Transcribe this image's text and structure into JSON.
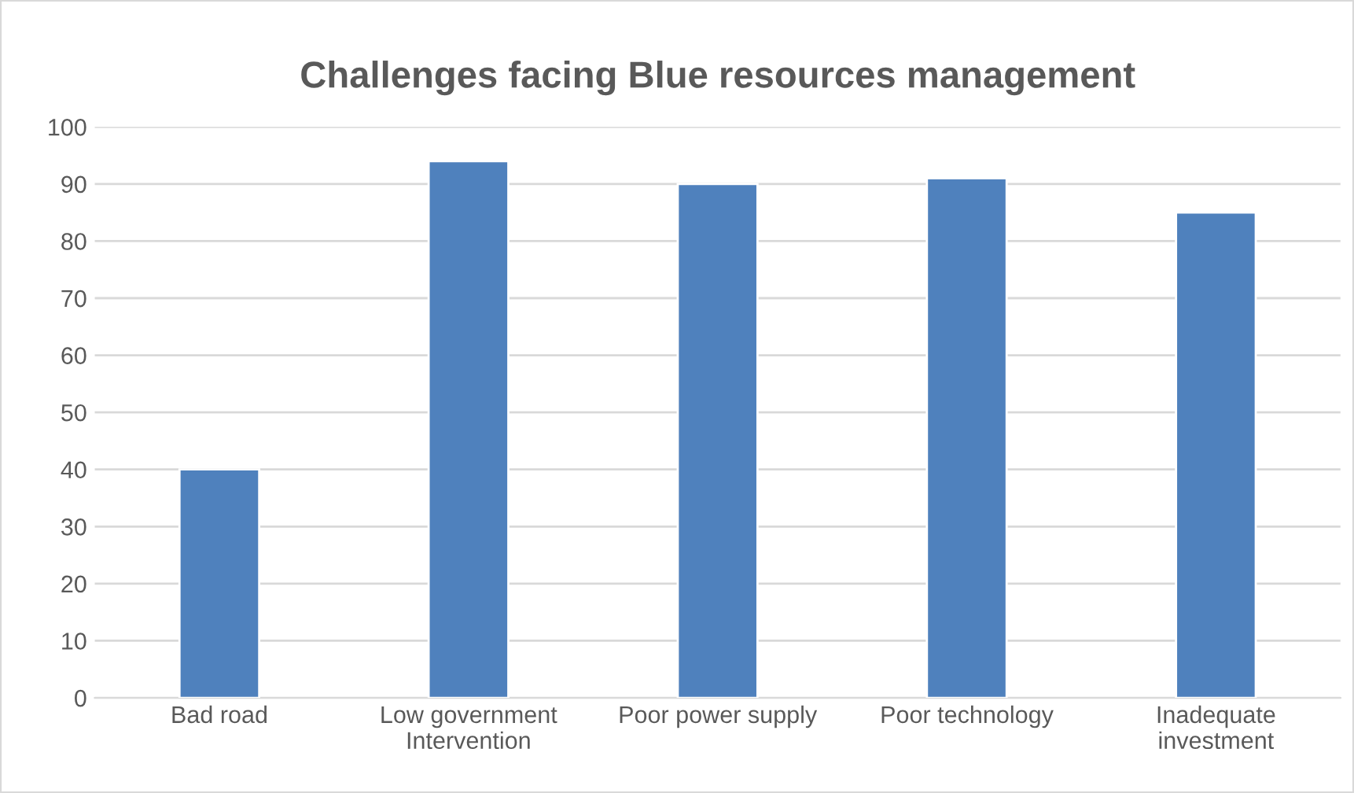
{
  "chart_data": {
    "type": "bar",
    "title": "Challenges facing Blue resources management",
    "categories": [
      "Bad road",
      "Low government\nIntervention",
      "Poor power supply",
      "Poor technology",
      "Inadequate\ninvestment"
    ],
    "values": [
      40,
      94,
      90,
      91,
      85
    ],
    "color": "#4f81bd",
    "ylim": [
      0,
      100
    ],
    "yticks": [
      0,
      10,
      20,
      30,
      40,
      50,
      60,
      70,
      80,
      90,
      100
    ],
    "grid": "y"
  }
}
